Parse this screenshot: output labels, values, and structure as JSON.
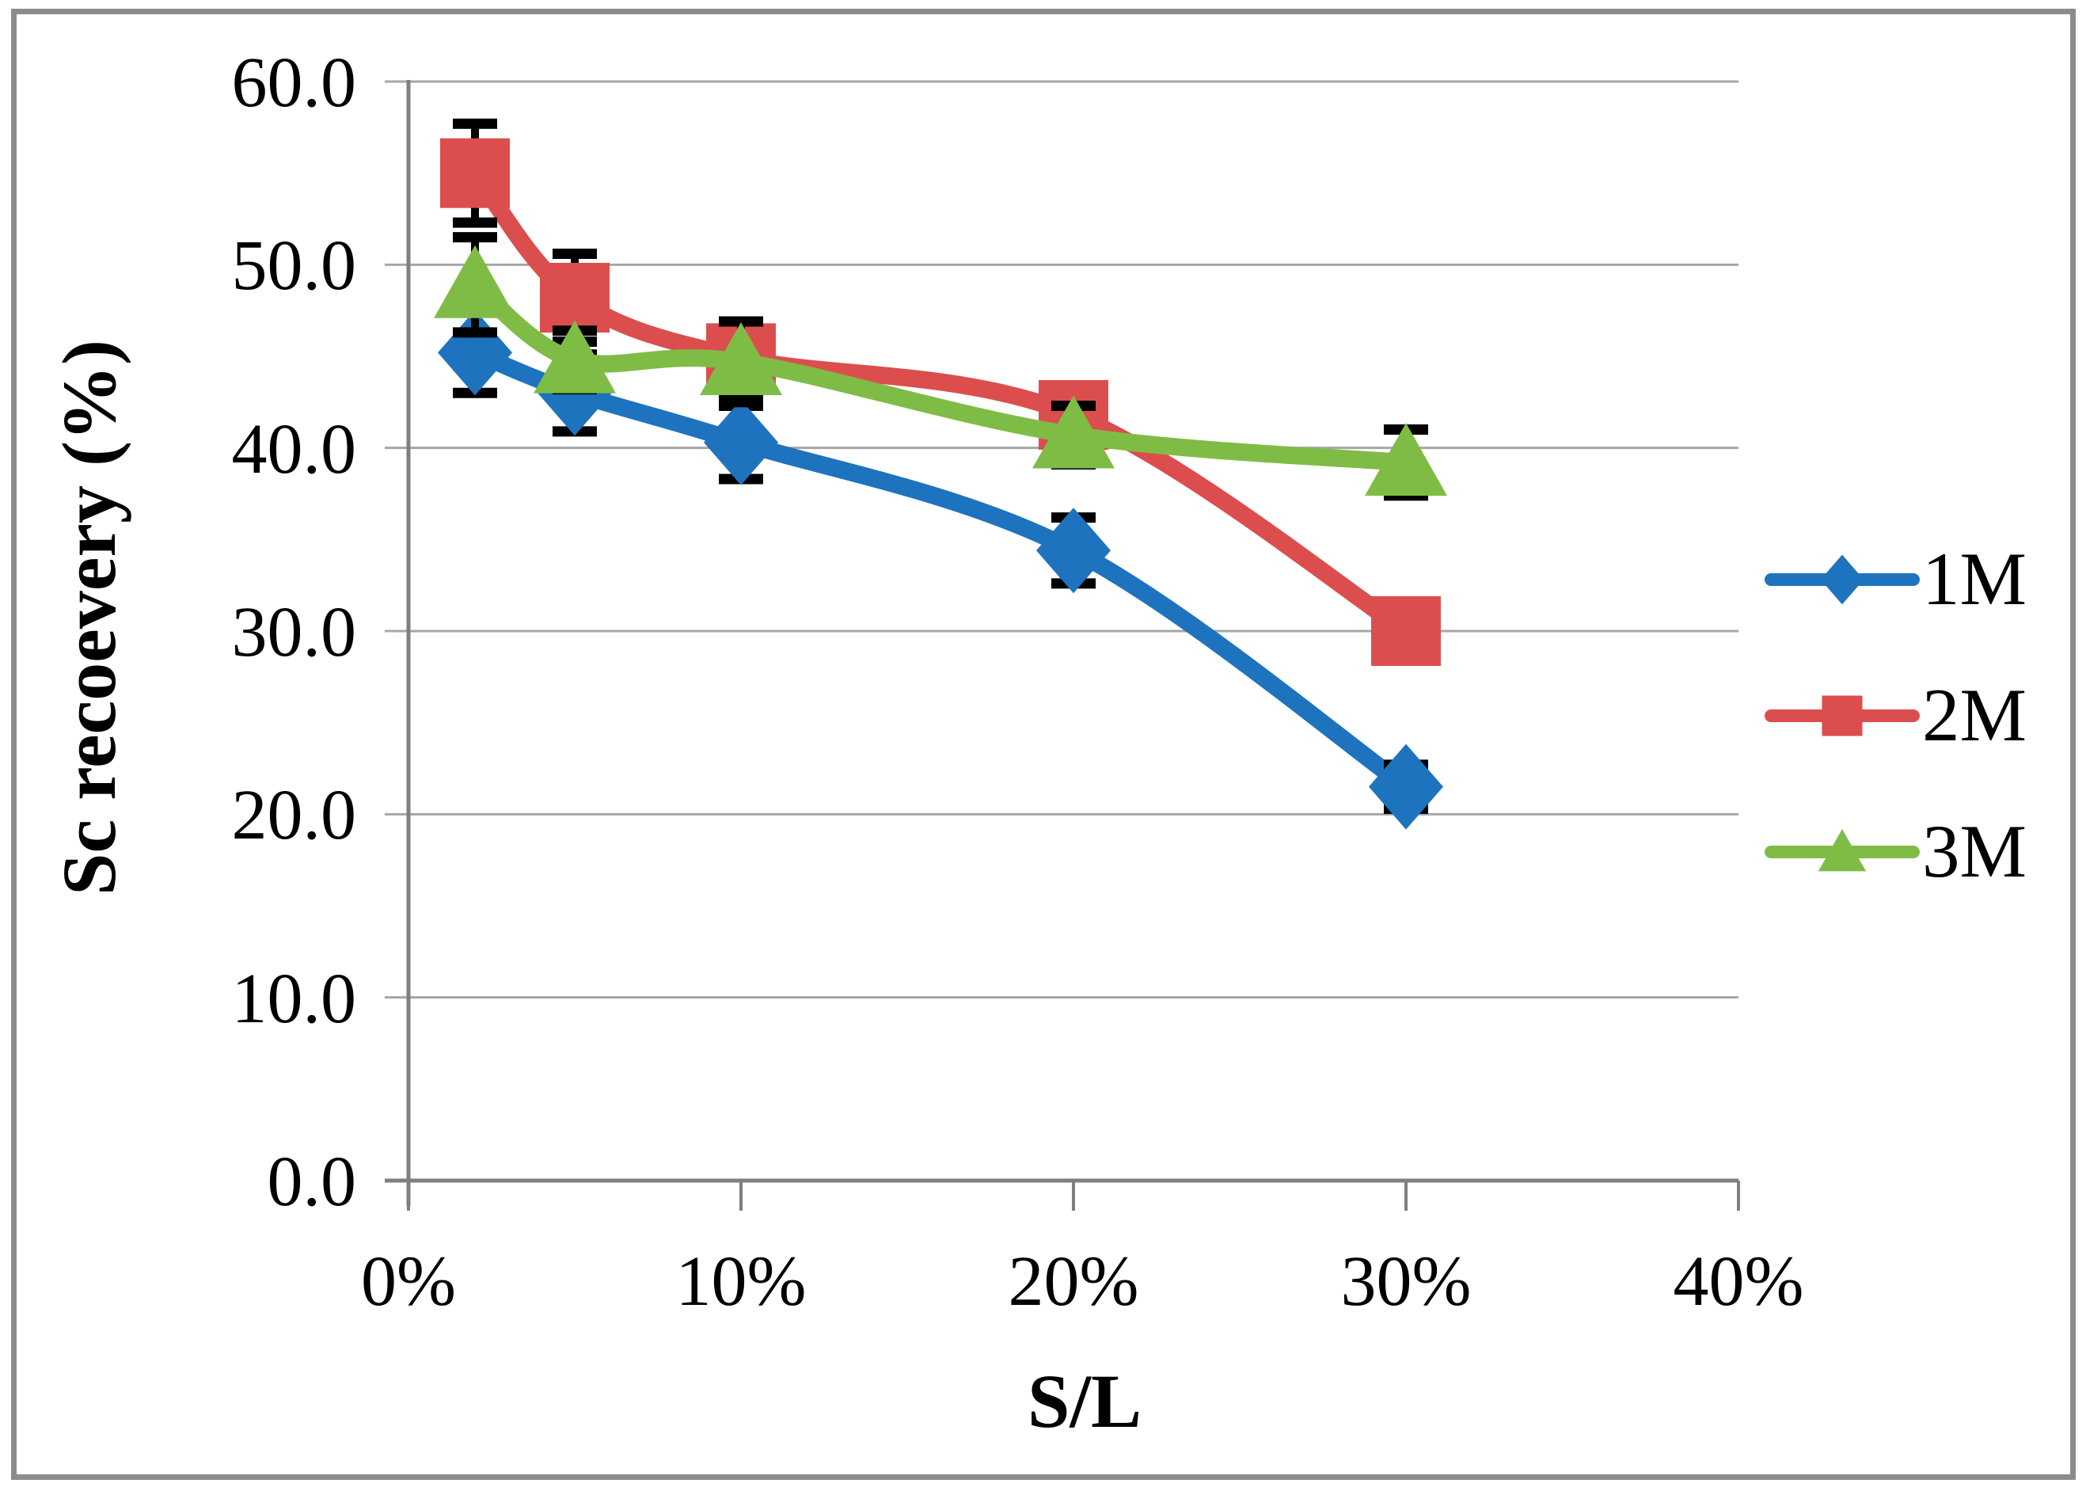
{
  "chart_data": {
    "type": "line",
    "title": "",
    "xlabel": "S/L",
    "ylabel": "Sc recoevery (%)",
    "x": [
      2,
      5,
      10,
      20,
      30
    ],
    "xlim": [
      0,
      40
    ],
    "ylim": [
      0,
      60
    ],
    "x_tick_values": [
      0,
      10,
      20,
      30,
      40
    ],
    "x_tick_labels": [
      "0%",
      "10%",
      "20%",
      "30%",
      "40%"
    ],
    "y_tick_values": [
      60,
      50,
      40,
      30,
      20,
      10,
      0
    ],
    "y_tick_labels": [
      "60.0",
      "50.0",
      "40.0",
      "30.0",
      "20.0",
      "10.0",
      "0.0"
    ],
    "grid": "horizontal",
    "legend_position": "right-middle",
    "error_bars": true,
    "line_style": "smooth",
    "series": [
      {
        "name": "1M",
        "marker": "diamond",
        "color": "#1E73BE",
        "values": [
          45.2,
          43.0,
          40.3,
          34.4,
          21.5
        ],
        "errors": [
          2.2,
          2.1,
          2.0,
          1.8,
          1.2
        ]
      },
      {
        "name": "2M",
        "marker": "square",
        "color": "#DC4E4E",
        "values": [
          55.0,
          48.2,
          44.9,
          41.8,
          30.0
        ],
        "errors": [
          2.7,
          2.4,
          2.0,
          1.4,
          1.5
        ]
      },
      {
        "name": "3M",
        "marker": "triangle",
        "color": "#7FBC46",
        "values": [
          48.9,
          44.8,
          44.7,
          40.7,
          39.2
        ],
        "errors": [
          2.6,
          1.6,
          2.2,
          1.6,
          1.8
        ]
      }
    ]
  },
  "style": {
    "grid_color": "#A6A6A6",
    "axis_color": "#7F7F7F",
    "error_color": "#000000",
    "frame_color": "#8C8C8C",
    "background": "#FFFFFF"
  }
}
